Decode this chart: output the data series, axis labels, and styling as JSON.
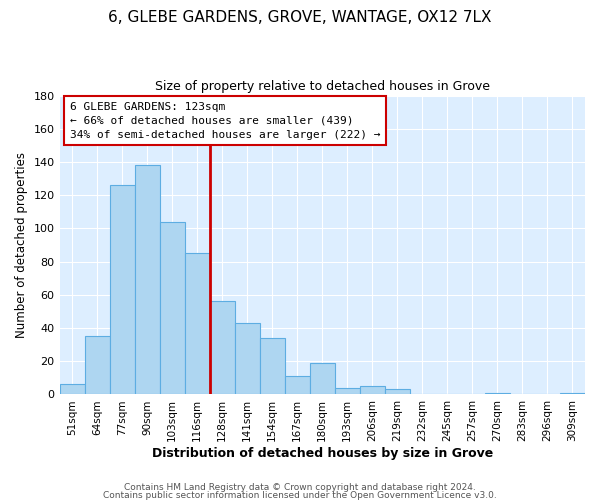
{
  "title": "6, GLEBE GARDENS, GROVE, WANTAGE, OX12 7LX",
  "subtitle": "Size of property relative to detached houses in Grove",
  "xlabel": "Distribution of detached houses by size in Grove",
  "ylabel": "Number of detached properties",
  "bar_labels": [
    "51sqm",
    "64sqm",
    "77sqm",
    "90sqm",
    "103sqm",
    "116sqm",
    "128sqm",
    "141sqm",
    "154sqm",
    "167sqm",
    "180sqm",
    "193sqm",
    "206sqm",
    "219sqm",
    "232sqm",
    "245sqm",
    "257sqm",
    "270sqm",
    "283sqm",
    "296sqm",
    "309sqm"
  ],
  "bar_values": [
    6,
    35,
    126,
    138,
    104,
    85,
    56,
    43,
    34,
    11,
    19,
    4,
    5,
    3,
    0,
    0,
    0,
    1,
    0,
    0,
    1
  ],
  "bar_color": "#aed6f1",
  "bar_edge_color": "#5dade2",
  "property_line_color": "#cc0000",
  "annotation_title": "6 GLEBE GARDENS: 123sqm",
  "annotation_line1": "← 66% of detached houses are smaller (439)",
  "annotation_line2": "34% of semi-detached houses are larger (222) →",
  "annotation_box_color": "#ffffff",
  "annotation_box_edge": "#cc0000",
  "plot_bg_color": "#ddeeff",
  "ylim": [
    0,
    180
  ],
  "footer1": "Contains HM Land Registry data © Crown copyright and database right 2024.",
  "footer2": "Contains public sector information licensed under the Open Government Licence v3.0."
}
